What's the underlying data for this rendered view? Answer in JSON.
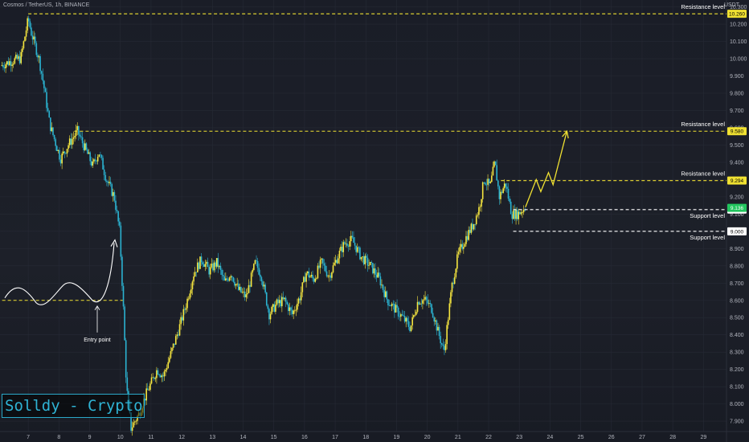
{
  "header": {
    "title": "Cosmos / TetherUS, 1h, BINANCE",
    "unit": "USDT"
  },
  "watermark": "Solldy - Crypto for U",
  "colors": {
    "up": "#f5e53f",
    "down": "#2bb3d1",
    "level": "#f0e132",
    "support": "#ffffff",
    "axis_text": "#b2b5be",
    "grid": "#262a35"
  },
  "levels": [
    {
      "kind": "resistance",
      "label": "Resistance level",
      "value": 10.26,
      "tag": "10.260"
    },
    {
      "kind": "resistance",
      "label": "Resistance level",
      "value": 9.58,
      "tag": "9.580"
    },
    {
      "kind": "resistance",
      "label": "Resistance level",
      "value": 9.294,
      "tag": "9.294"
    },
    {
      "kind": "support",
      "label": "Support level",
      "value": 9.126,
      "tag": "9.126"
    },
    {
      "kind": "support",
      "label": "Support level",
      "value": 9.0,
      "tag": "9.000"
    }
  ],
  "current_price": {
    "value": 9.136,
    "tag": "9.136"
  },
  "annotation": {
    "entry_label": "Entry point",
    "entry_price": 8.6
  },
  "chart_data": {
    "type": "candlestick",
    "x_unit": "day of month",
    "x_ticks": [
      "7",
      "8",
      "9",
      "10",
      "11",
      "12",
      "13",
      "14",
      "15",
      "16",
      "17",
      "18",
      "19",
      "20",
      "21",
      "22",
      "23",
      "24",
      "25",
      "26",
      "27",
      "28",
      "29"
    ],
    "y_ticks": [
      "10.300",
      "10.200",
      "10.100",
      "10.000",
      "9.900",
      "9.800",
      "9.700",
      "9.600",
      "9.500",
      "9.400",
      "9.300",
      "9.200",
      "9.100",
      "9.000",
      "8.900",
      "8.800",
      "8.700",
      "8.600",
      "8.500",
      "8.400",
      "8.300",
      "8.200",
      "8.100",
      "8.000",
      "7.900"
    ],
    "ylim": [
      7.84,
      10.34
    ],
    "xlim": [
      6.08,
      29.75
    ],
    "close_path": [
      [
        6.1,
        9.96
      ],
      [
        6.5,
        9.99
      ],
      [
        6.75,
        10.0
      ],
      [
        7.0,
        10.23
      ],
      [
        7.1,
        10.15
      ],
      [
        7.35,
        10.0
      ],
      [
        7.5,
        9.85
      ],
      [
        7.7,
        9.62
      ],
      [
        8.05,
        9.42
      ],
      [
        8.3,
        9.5
      ],
      [
        8.6,
        9.58
      ],
      [
        8.85,
        9.48
      ],
      [
        9.1,
        9.38
      ],
      [
        9.3,
        9.46
      ],
      [
        9.55,
        9.3
      ],
      [
        9.8,
        9.2
      ],
      [
        9.98,
        9.0
      ],
      [
        10.1,
        8.55
      ],
      [
        10.2,
        8.1
      ],
      [
        10.35,
        7.86
      ],
      [
        10.6,
        7.94
      ],
      [
        10.85,
        8.06
      ],
      [
        11.2,
        8.2
      ],
      [
        11.4,
        8.16
      ],
      [
        11.7,
        8.32
      ],
      [
        11.9,
        8.43
      ],
      [
        12.15,
        8.58
      ],
      [
        12.4,
        8.76
      ],
      [
        12.65,
        8.84
      ],
      [
        12.9,
        8.77
      ],
      [
        13.15,
        8.82
      ],
      [
        13.4,
        8.7
      ],
      [
        13.6,
        8.76
      ],
      [
        13.85,
        8.66
      ],
      [
        14.1,
        8.62
      ],
      [
        14.4,
        8.82
      ],
      [
        14.6,
        8.74
      ],
      [
        14.85,
        8.52
      ],
      [
        15.1,
        8.58
      ],
      [
        15.35,
        8.6
      ],
      [
        15.6,
        8.52
      ],
      [
        15.85,
        8.62
      ],
      [
        16.05,
        8.76
      ],
      [
        16.3,
        8.72
      ],
      [
        16.55,
        8.82
      ],
      [
        16.8,
        8.74
      ],
      [
        17.05,
        8.84
      ],
      [
        17.3,
        8.93
      ],
      [
        17.55,
        8.95
      ],
      [
        17.85,
        8.85
      ],
      [
        18.15,
        8.8
      ],
      [
        18.45,
        8.72
      ],
      [
        18.7,
        8.6
      ],
      [
        18.95,
        8.55
      ],
      [
        19.2,
        8.5
      ],
      [
        19.45,
        8.44
      ],
      [
        19.7,
        8.6
      ],
      [
        19.95,
        8.6
      ],
      [
        20.15,
        8.55
      ],
      [
        20.35,
        8.42
      ],
      [
        20.55,
        8.3
      ],
      [
        20.8,
        8.68
      ],
      [
        21.0,
        8.86
      ],
      [
        21.25,
        8.96
      ],
      [
        21.5,
        9.04
      ],
      [
        21.7,
        9.14
      ],
      [
        21.85,
        9.3
      ],
      [
        22.05,
        9.26
      ],
      [
        22.2,
        9.4
      ],
      [
        22.35,
        9.2
      ],
      [
        22.55,
        9.28
      ],
      [
        22.75,
        9.1
      ],
      [
        22.95,
        9.1
      ],
      [
        23.2,
        9.14
      ]
    ],
    "projection": [
      [
        23.2,
        9.14
      ],
      [
        23.55,
        9.3
      ],
      [
        23.7,
        9.23
      ],
      [
        23.95,
        9.34
      ],
      [
        24.1,
        9.27
      ],
      [
        24.55,
        9.58
      ]
    ]
  }
}
